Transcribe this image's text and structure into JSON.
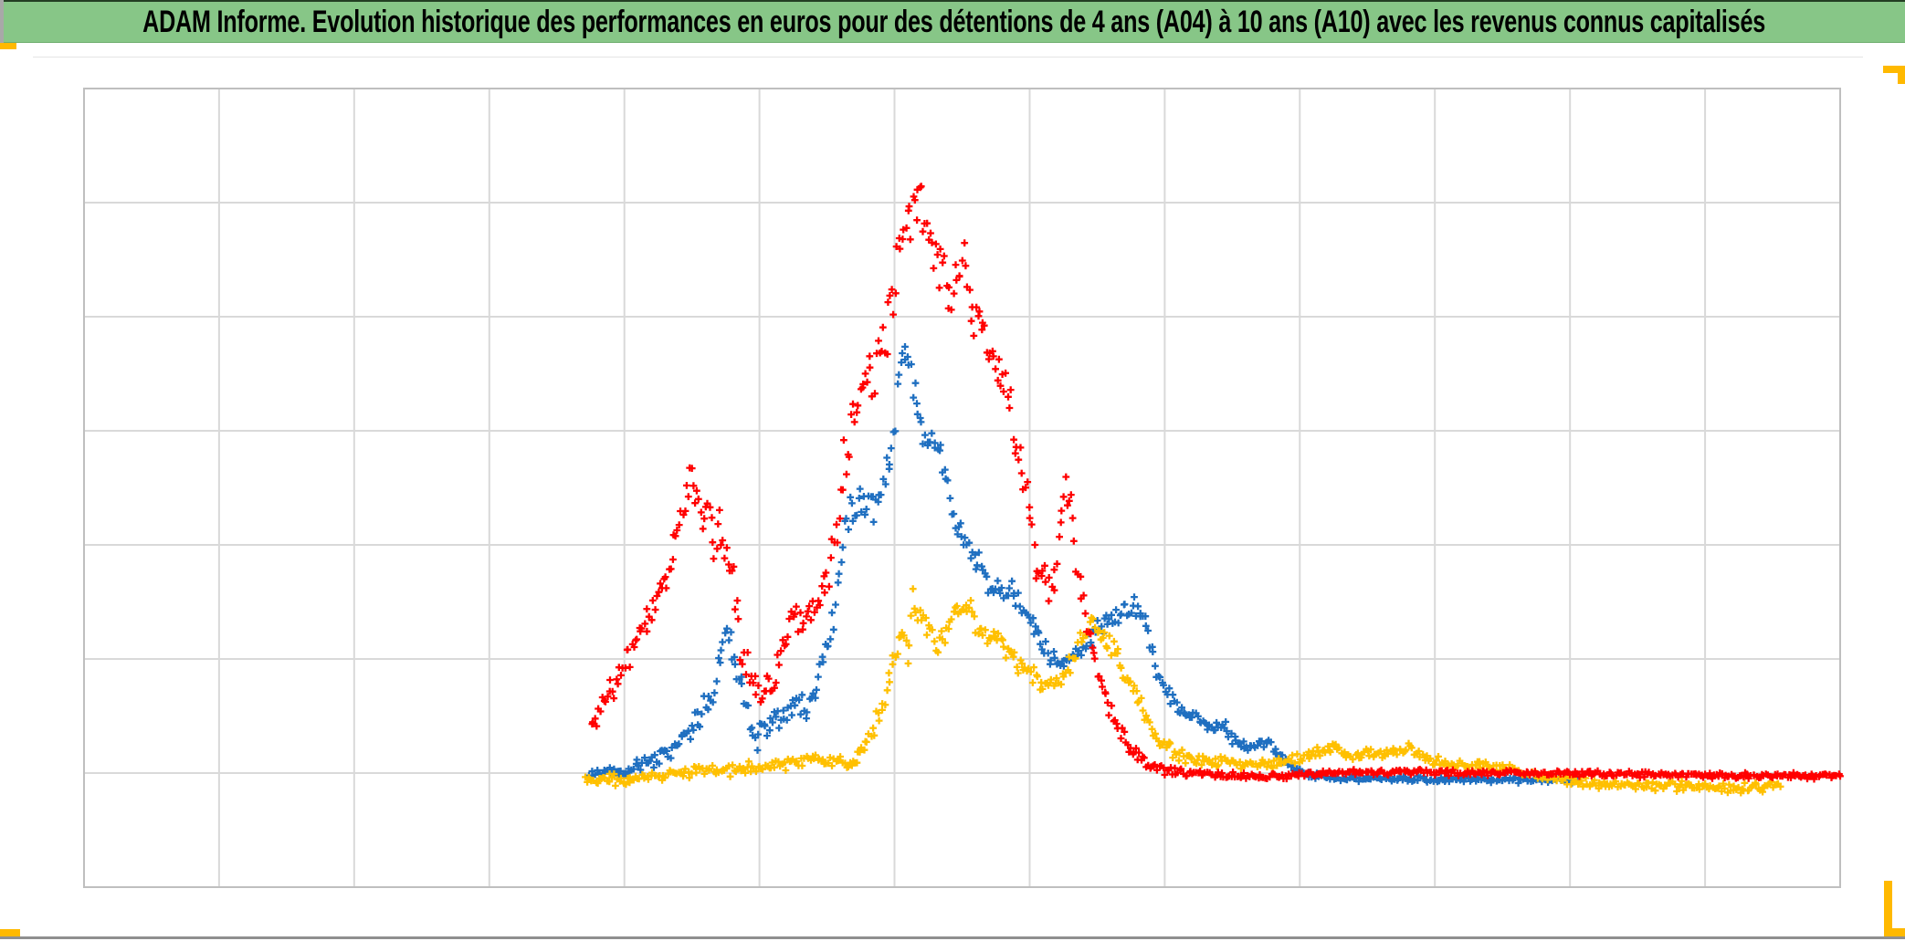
{
  "header": {
    "title": "ADAM Informe. Evolution historique des performances en euros pour des détentions de 4 ans (A04) à 10 ans (A10) avec les revenus connus capitalisés",
    "background_color": "#87C687",
    "text_color": "#000000"
  },
  "decorations": {
    "selection_handle_color": "#FFB900",
    "window_edge_color": "#8F8F8F"
  },
  "chart_data": {
    "type": "scatter",
    "title": "ADAM Informe. Evolution historique des performances en euros pour des détentions de 4 ans (A04) à 10 ans (A10) avec les revenus connus capitalisés",
    "xlabel": "",
    "ylabel": "",
    "axis_tick_labels_visible": false,
    "legend": "none",
    "grid": {
      "cols": 13,
      "rows": 7,
      "line_color": "#D9D9D9",
      "border_color": "#BFBFBF",
      "plot_background": "#FFFFFF"
    },
    "coordinate_note": "No axis labels are visible in the image; anchors are [x,y,spread] in fractions of the plot area (x: 0=left edge, 1=right edge; y: 0=bottom edge, 1=top edge; spread = half-width of the scatter noise band). Markers are plus signs.",
    "marker": "plus",
    "series": [
      {
        "name": "series-blue",
        "color": "#1F6FC0",
        "anchors": [
          [
            0.288,
            0.142,
            0.005
          ],
          [
            0.298,
            0.143,
            0.005
          ],
          [
            0.307,
            0.146,
            0.006
          ],
          [
            0.316,
            0.151,
            0.007
          ],
          [
            0.325,
            0.162,
            0.008
          ],
          [
            0.332,
            0.17,
            0.009
          ],
          [
            0.338,
            0.179,
            0.01
          ],
          [
            0.345,
            0.193,
            0.011
          ],
          [
            0.352,
            0.217,
            0.014
          ],
          [
            0.358,
            0.242,
            0.015
          ],
          [
            0.363,
            0.294,
            0.016
          ],
          [
            0.367,
            0.317,
            0.016
          ],
          [
            0.371,
            0.279,
            0.016
          ],
          [
            0.375,
            0.24,
            0.015
          ],
          [
            0.38,
            0.202,
            0.014
          ],
          [
            0.384,
            0.185,
            0.013
          ],
          [
            0.389,
            0.208,
            0.014
          ],
          [
            0.394,
            0.219,
            0.014
          ],
          [
            0.399,
            0.21,
            0.014
          ],
          [
            0.406,
            0.233,
            0.015
          ],
          [
            0.411,
            0.225,
            0.015
          ],
          [
            0.416,
            0.251,
            0.015
          ],
          [
            0.421,
            0.288,
            0.016
          ],
          [
            0.425,
            0.322,
            0.017
          ],
          [
            0.429,
            0.374,
            0.018
          ],
          [
            0.432,
            0.427,
            0.018
          ],
          [
            0.436,
            0.465,
            0.018
          ],
          [
            0.441,
            0.485,
            0.018
          ],
          [
            0.446,
            0.482,
            0.018
          ],
          [
            0.451,
            0.48,
            0.017
          ],
          [
            0.456,
            0.503,
            0.017
          ],
          [
            0.46,
            0.551,
            0.018
          ],
          [
            0.463,
            0.608,
            0.018
          ],
          [
            0.466,
            0.671,
            0.021
          ],
          [
            0.469,
            0.665,
            0.018
          ],
          [
            0.472,
            0.631,
            0.018
          ],
          [
            0.476,
            0.591,
            0.018
          ],
          [
            0.479,
            0.545,
            0.018
          ],
          [
            0.483,
            0.576,
            0.017
          ],
          [
            0.487,
            0.553,
            0.017
          ],
          [
            0.491,
            0.511,
            0.017
          ],
          [
            0.496,
            0.459,
            0.017
          ],
          [
            0.501,
            0.434,
            0.016
          ],
          [
            0.506,
            0.419,
            0.016
          ],
          [
            0.51,
            0.4,
            0.015
          ],
          [
            0.516,
            0.374,
            0.014
          ],
          [
            0.522,
            0.366,
            0.014
          ],
          [
            0.527,
            0.374,
            0.014
          ],
          [
            0.532,
            0.354,
            0.014
          ],
          [
            0.539,
            0.331,
            0.013
          ],
          [
            0.545,
            0.305,
            0.011
          ],
          [
            0.551,
            0.286,
            0.01
          ],
          [
            0.558,
            0.277,
            0.01
          ],
          [
            0.565,
            0.286,
            0.01
          ],
          [
            0.571,
            0.305,
            0.011
          ],
          [
            0.578,
            0.322,
            0.011
          ],
          [
            0.584,
            0.336,
            0.011
          ],
          [
            0.591,
            0.347,
            0.011
          ],
          [
            0.597,
            0.35,
            0.011
          ],
          [
            0.602,
            0.343,
            0.01
          ],
          [
            0.606,
            0.317,
            0.01
          ],
          [
            0.612,
            0.265,
            0.009
          ],
          [
            0.617,
            0.24,
            0.008
          ],
          [
            0.623,
            0.229,
            0.008
          ],
          [
            0.629,
            0.217,
            0.007
          ],
          [
            0.636,
            0.208,
            0.007
          ],
          [
            0.643,
            0.203,
            0.007
          ],
          [
            0.649,
            0.206,
            0.007
          ],
          [
            0.655,
            0.183,
            0.007
          ],
          [
            0.662,
            0.174,
            0.006
          ],
          [
            0.669,
            0.181,
            0.006
          ],
          [
            0.675,
            0.183,
            0.006
          ],
          [
            0.681,
            0.167,
            0.006
          ],
          [
            0.688,
            0.151,
            0.005
          ],
          [
            0.696,
            0.142,
            0.004
          ],
          [
            0.706,
            0.137,
            0.003
          ],
          [
            0.732,
            0.136,
            0.003
          ],
          [
            0.784,
            0.135,
            0.003
          ],
          [
            0.85,
            0.134,
            0.003
          ]
        ]
      },
      {
        "name": "series-yellow",
        "color": "#FFC000",
        "anchors": [
          [
            0.285,
            0.133,
            0.006
          ],
          [
            0.306,
            0.136,
            0.006
          ],
          [
            0.327,
            0.141,
            0.006
          ],
          [
            0.347,
            0.145,
            0.006
          ],
          [
            0.368,
            0.147,
            0.006
          ],
          [
            0.389,
            0.151,
            0.006
          ],
          [
            0.405,
            0.157,
            0.006
          ],
          [
            0.418,
            0.162,
            0.007
          ],
          [
            0.428,
            0.159,
            0.007
          ],
          [
            0.438,
            0.151,
            0.007
          ],
          [
            0.449,
            0.197,
            0.01
          ],
          [
            0.456,
            0.237,
            0.011
          ],
          [
            0.461,
            0.286,
            0.013
          ],
          [
            0.465,
            0.317,
            0.013
          ],
          [
            0.469,
            0.286,
            0.013
          ],
          [
            0.472,
            0.362,
            0.014
          ],
          [
            0.476,
            0.343,
            0.014
          ],
          [
            0.48,
            0.32,
            0.014
          ],
          [
            0.485,
            0.305,
            0.014
          ],
          [
            0.49,
            0.317,
            0.014
          ],
          [
            0.497,
            0.347,
            0.014
          ],
          [
            0.502,
            0.354,
            0.014
          ],
          [
            0.508,
            0.325,
            0.014
          ],
          [
            0.514,
            0.317,
            0.014
          ],
          [
            0.52,
            0.309,
            0.013
          ],
          [
            0.527,
            0.294,
            0.013
          ],
          [
            0.534,
            0.279,
            0.011
          ],
          [
            0.541,
            0.265,
            0.011
          ],
          [
            0.549,
            0.251,
            0.011
          ],
          [
            0.556,
            0.256,
            0.011
          ],
          [
            0.563,
            0.286,
            0.011
          ],
          [
            0.57,
            0.32,
            0.011
          ],
          [
            0.575,
            0.336,
            0.011
          ],
          [
            0.58,
            0.317,
            0.011
          ],
          [
            0.587,
            0.294,
            0.01
          ],
          [
            0.594,
            0.267,
            0.01
          ],
          [
            0.602,
            0.225,
            0.009
          ],
          [
            0.608,
            0.197,
            0.008
          ],
          [
            0.615,
            0.179,
            0.007
          ],
          [
            0.623,
            0.168,
            0.007
          ],
          [
            0.633,
            0.16,
            0.006
          ],
          [
            0.646,
            0.155,
            0.006
          ],
          [
            0.662,
            0.153,
            0.006
          ],
          [
            0.68,
            0.155,
            0.006
          ],
          [
            0.696,
            0.162,
            0.006
          ],
          [
            0.705,
            0.169,
            0.006
          ],
          [
            0.712,
            0.175,
            0.006
          ],
          [
            0.721,
            0.162,
            0.006
          ],
          [
            0.73,
            0.169,
            0.006
          ],
          [
            0.737,
            0.165,
            0.006
          ],
          [
            0.747,
            0.171,
            0.006
          ],
          [
            0.756,
            0.174,
            0.006
          ],
          [
            0.764,
            0.162,
            0.006
          ],
          [
            0.774,
            0.155,
            0.005
          ],
          [
            0.789,
            0.152,
            0.005
          ],
          [
            0.808,
            0.149,
            0.005
          ],
          [
            0.826,
            0.142,
            0.005
          ],
          [
            0.841,
            0.135,
            0.005
          ],
          [
            0.857,
            0.13,
            0.005
          ],
          [
            0.883,
            0.128,
            0.005
          ],
          [
            0.914,
            0.126,
            0.005
          ],
          [
            0.943,
            0.125,
            0.005
          ],
          [
            0.966,
            0.126,
            0.005
          ]
        ]
      },
      {
        "name": "series-red",
        "color": "#FF0000",
        "anchors": [
          [
            0.289,
            0.197,
            0.014
          ],
          [
            0.295,
            0.225,
            0.014
          ],
          [
            0.306,
            0.271,
            0.015
          ],
          [
            0.316,
            0.317,
            0.016
          ],
          [
            0.324,
            0.343,
            0.016
          ],
          [
            0.332,
            0.391,
            0.018
          ],
          [
            0.338,
            0.448,
            0.021
          ],
          [
            0.345,
            0.507,
            0.018
          ],
          [
            0.35,
            0.488,
            0.021
          ],
          [
            0.355,
            0.459,
            0.025
          ],
          [
            0.363,
            0.434,
            0.029
          ],
          [
            0.368,
            0.423,
            0.032
          ],
          [
            0.372,
            0.362,
            0.034
          ],
          [
            0.374,
            0.305,
            0.025
          ],
          [
            0.379,
            0.267,
            0.016
          ],
          [
            0.386,
            0.245,
            0.014
          ],
          [
            0.394,
            0.263,
            0.015
          ],
          [
            0.4,
            0.322,
            0.018
          ],
          [
            0.407,
            0.334,
            0.017
          ],
          [
            0.415,
            0.343,
            0.016
          ],
          [
            0.42,
            0.359,
            0.018
          ],
          [
            0.425,
            0.405,
            0.023
          ],
          [
            0.43,
            0.471,
            0.025
          ],
          [
            0.433,
            0.534,
            0.025
          ],
          [
            0.438,
            0.583,
            0.025
          ],
          [
            0.444,
            0.631,
            0.025
          ],
          [
            0.451,
            0.651,
            0.027
          ],
          [
            0.459,
            0.717,
            0.03
          ],
          [
            0.464,
            0.785,
            0.032
          ],
          [
            0.47,
            0.842,
            0.03
          ],
          [
            0.475,
            0.871,
            0.03
          ],
          [
            0.478,
            0.831,
            0.03
          ],
          [
            0.483,
            0.8,
            0.03
          ],
          [
            0.488,
            0.774,
            0.03
          ],
          [
            0.493,
            0.734,
            0.03
          ],
          [
            0.501,
            0.785,
            0.027
          ],
          [
            0.506,
            0.734,
            0.027
          ],
          [
            0.511,
            0.697,
            0.025
          ],
          [
            0.516,
            0.674,
            0.025
          ],
          [
            0.524,
            0.631,
            0.027
          ],
          [
            0.529,
            0.576,
            0.027
          ],
          [
            0.534,
            0.53,
            0.025
          ],
          [
            0.538,
            0.473,
            0.025
          ],
          [
            0.542,
            0.416,
            0.021
          ],
          [
            0.548,
            0.376,
            0.016
          ],
          [
            0.553,
            0.397,
            0.018
          ],
          [
            0.556,
            0.457,
            0.021
          ],
          [
            0.559,
            0.503,
            0.018
          ],
          [
            0.562,
            0.469,
            0.021
          ],
          [
            0.565,
            0.414,
            0.018
          ],
          [
            0.568,
            0.365,
            0.016
          ],
          [
            0.571,
            0.325,
            0.014
          ],
          [
            0.575,
            0.29,
            0.011
          ],
          [
            0.581,
            0.245,
            0.01
          ],
          [
            0.589,
            0.199,
            0.009
          ],
          [
            0.597,
            0.169,
            0.007
          ],
          [
            0.607,
            0.151,
            0.006
          ],
          [
            0.623,
            0.143,
            0.004
          ],
          [
            0.649,
            0.141,
            0.003
          ],
          [
            0.68,
            0.139,
            0.003
          ],
          [
            0.711,
            0.143,
            0.003
          ],
          [
            0.743,
            0.144,
            0.003
          ],
          [
            0.784,
            0.143,
            0.003
          ],
          [
            0.836,
            0.142,
            0.003
          ],
          [
            0.888,
            0.141,
            0.003
          ],
          [
            0.94,
            0.139,
            0.003
          ],
          [
            1.0,
            0.139,
            0.003
          ]
        ]
      }
    ]
  }
}
